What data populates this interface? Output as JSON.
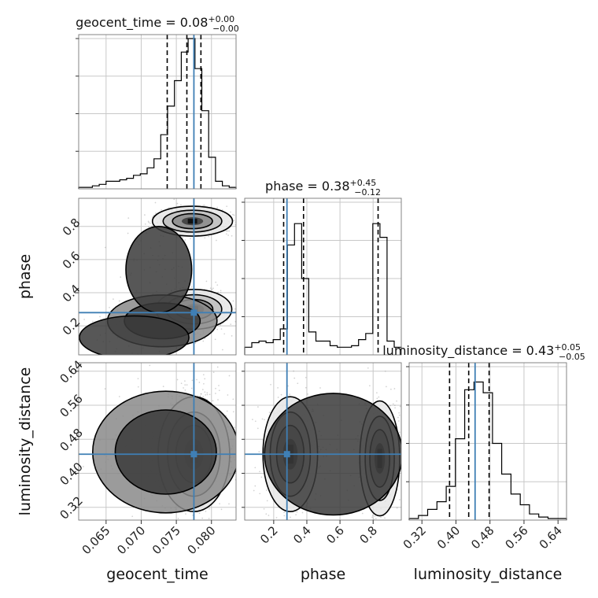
{
  "chart_data": {
    "type": "corner",
    "parameters": [
      "geocent_time",
      "phase",
      "luminosity_distance"
    ],
    "colors": {
      "truth": "#3f7fb5",
      "hist": "#000000",
      "grid": "#c8c8c8",
      "points": "#9a9a9a",
      "quantile": "#000000"
    },
    "titles": [
      {
        "param": "geocent_time",
        "prefix": "geocent_time = ",
        "median": "0.08",
        "plus": "+0.00",
        "minus": "−0.00"
      },
      {
        "param": "phase",
        "prefix": "phase = ",
        "median": "0.38",
        "plus": "+0.45",
        "minus": "−0.12"
      },
      {
        "param": "luminosity_distance",
        "prefix": "luminosity_distance = ",
        "median": "0.43",
        "plus": "+0.05",
        "minus": "−0.05"
      }
    ],
    "axes": {
      "geocent_time": {
        "label": "geocent_time",
        "range": [
          0.0611,
          0.0835
        ],
        "ticks": [
          0.065,
          0.07,
          0.075,
          0.08
        ],
        "tick_labels": [
          "0.065",
          "0.070",
          "0.075",
          "0.080"
        ]
      },
      "phase": {
        "label": "phase",
        "range": [
          0.025,
          0.97
        ],
        "ticks": [
          0.2,
          0.4,
          0.6,
          0.8
        ],
        "tick_labels": [
          "0.2",
          "0.4",
          "0.6",
          "0.8"
        ]
      },
      "luminosity_distance": {
        "label": "luminosity_distance",
        "range": [
          0.29,
          0.66
        ],
        "ticks": [
          0.32,
          0.4,
          0.48,
          0.56,
          0.64
        ],
        "tick_labels": [
          "0.32",
          "0.40",
          "0.48",
          "0.56",
          "0.64"
        ]
      }
    },
    "truths": {
      "geocent_time": 0.0775,
      "phase": 0.28,
      "luminosity_distance": 0.445
    },
    "quantiles": {
      "geocent_time": [
        0.0737,
        0.0765,
        0.0785
      ],
      "phase": [
        0.26,
        0.38,
        0.83
      ],
      "luminosity_distance": [
        0.385,
        0.43,
        0.478
      ]
    },
    "histograms": {
      "geocent_time": [
        0.01,
        0.01,
        0.02,
        0.03,
        0.05,
        0.05,
        0.06,
        0.07,
        0.09,
        0.1,
        0.14,
        0.2,
        0.36,
        0.55,
        0.72,
        0.91,
        1.0,
        0.8,
        0.52,
        0.21,
        0.05,
        0.02,
        0.01
      ],
      "phase": [
        0.05,
        0.08,
        0.09,
        0.08,
        0.1,
        0.17,
        0.72,
        0.86,
        0.5,
        0.15,
        0.09,
        0.09,
        0.06,
        0.05,
        0.05,
        0.06,
        0.1,
        0.14,
        0.86,
        0.77,
        0.09,
        0.05
      ],
      "luminosity_distance": [
        0.01,
        0.03,
        0.07,
        0.12,
        0.22,
        0.53,
        0.85,
        0.9,
        0.83,
        0.5,
        0.3,
        0.17,
        0.1,
        0.04,
        0.02,
        0.01,
        0.01
      ]
    },
    "blobs": {
      "phase_vs_geocent_time": [
        {
          "x": 0.0773,
          "y": 0.832,
          "sx": 0.0019,
          "sy": 0.03,
          "w": 1.0
        },
        {
          "x": 0.0775,
          "y": 0.3,
          "sx": 0.0018,
          "sy": 0.04,
          "w": 0.95
        },
        {
          "x": 0.073,
          "y": 0.23,
          "sx": 0.003,
          "sy": 0.06,
          "w": 0.28
        },
        {
          "x": 0.069,
          "y": 0.13,
          "sx": 0.003,
          "sy": 0.05,
          "w": 0.14
        },
        {
          "x": 0.0725,
          "y": 0.54,
          "sx": 0.0018,
          "sy": 0.1,
          "w": 0.1
        }
      ],
      "luminosity_distance_vs_geocent_time": [
        {
          "x": 0.0775,
          "y": 0.445,
          "sx": 0.0017,
          "sy": 0.045,
          "w": 1.0
        },
        {
          "x": 0.0735,
          "y": 0.45,
          "sx": 0.004,
          "sy": 0.055,
          "w": 0.22
        }
      ],
      "luminosity_distance_vs_phase": [
        {
          "x": 0.3,
          "y": 0.445,
          "sx": 0.055,
          "sy": 0.045,
          "w": 1.0
        },
        {
          "x": 0.84,
          "y": 0.435,
          "sx": 0.04,
          "sy": 0.045,
          "w": 0.95
        },
        {
          "x": 0.56,
          "y": 0.445,
          "sx": 0.16,
          "sy": 0.055,
          "w": 0.06
        }
      ]
    }
  }
}
